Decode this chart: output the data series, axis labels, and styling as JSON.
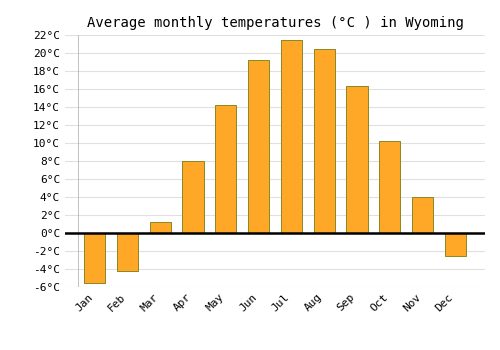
{
  "title": "Average monthly temperatures (°C ) in Wyoming",
  "months": [
    "Jan",
    "Feb",
    "Mar",
    "Apr",
    "May",
    "Jun",
    "Jul",
    "Aug",
    "Sep",
    "Oct",
    "Nov",
    "Dec"
  ],
  "values": [
    -5.5,
    -4.2,
    1.2,
    8.0,
    14.2,
    19.2,
    21.5,
    20.5,
    16.3,
    10.2,
    4.0,
    -2.5
  ],
  "bar_color": "#FFA828",
  "bar_edge_color": "#888822",
  "ylim": [
    -6,
    22
  ],
  "yticks": [
    -6,
    -4,
    -2,
    0,
    2,
    4,
    6,
    8,
    10,
    12,
    14,
    16,
    18,
    20,
    22
  ],
  "background_color": "#ffffff",
  "grid_color": "#e0e0e0",
  "title_fontsize": 10,
  "tick_fontsize": 8,
  "bar_width": 0.65
}
